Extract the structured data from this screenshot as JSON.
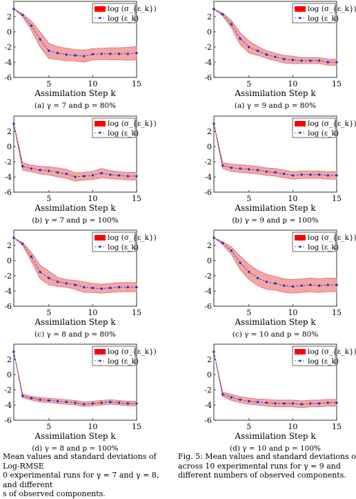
{
  "colors": {
    "band_fill": "#f4a6a6",
    "band_edge": "#e06060",
    "mean_line": "#1a33cc",
    "legend_red": "#ff0000"
  },
  "chart_data": [
    {
      "type": "area",
      "x": [
        1,
        2,
        3,
        4,
        5,
        6,
        7,
        8,
        9,
        10,
        11,
        12,
        13,
        14,
        15
      ],
      "mean": [
        3.0,
        2.2,
        0.8,
        -1.0,
        -2.5,
        -2.8,
        -3.0,
        -3.1,
        -3.2,
        -2.95,
        -2.9,
        -2.9,
        -2.9,
        -2.9,
        -2.8
      ],
      "std": [
        0.0,
        0.2,
        0.6,
        1.0,
        1.0,
        0.85,
        0.85,
        0.75,
        0.8,
        0.75,
        0.75,
        0.8,
        0.8,
        0.85,
        0.9
      ],
      "xlabel": "Assimilation Step k",
      "ylim": [
        -6,
        4
      ],
      "xlim": [
        1,
        15
      ],
      "xticks": [
        5,
        10,
        15
      ],
      "yticks": [
        -6,
        -4,
        -2,
        0,
        2
      ],
      "legend": [
        "log (σ_{ε_k})",
        "log (ε_k)"
      ],
      "caption": "(a) γ = 7 and p = 80%"
    },
    {
      "type": "area",
      "x": [
        1,
        2,
        3,
        4,
        5,
        6,
        7,
        8,
        9,
        10,
        11,
        12,
        13,
        14,
        15
      ],
      "mean": [
        3.0,
        -2.6,
        -2.9,
        -3.1,
        -3.2,
        -3.4,
        -3.6,
        -4.0,
        -3.9,
        -3.8,
        -3.5,
        -3.7,
        -3.8,
        -3.9,
        -3.9
      ],
      "std": [
        0.0,
        0.5,
        0.45,
        0.5,
        0.55,
        0.6,
        0.6,
        0.55,
        0.5,
        0.55,
        0.6,
        0.55,
        0.5,
        0.5,
        0.5
      ],
      "xlabel": "Assimilation Step k",
      "ylim": [
        -6,
        4
      ],
      "xlim": [
        1,
        15
      ],
      "xticks": [
        5,
        10,
        15
      ],
      "yticks": [
        -6,
        -4,
        -2,
        0,
        2
      ],
      "legend": [
        "log (σ_{ε_k})",
        "log (ε_k)"
      ],
      "caption": "(b) γ = 7 and p = 100%"
    },
    {
      "type": "area",
      "x": [
        1,
        2,
        3,
        4,
        5,
        6,
        7,
        8,
        9,
        10,
        11,
        12,
        13,
        14,
        15
      ],
      "mean": [
        3.0,
        2.2,
        0.5,
        -1.5,
        -2.3,
        -2.8,
        -3.0,
        -3.2,
        -3.5,
        -3.6,
        -3.7,
        -3.6,
        -3.5,
        -3.5,
        -3.5
      ],
      "std": [
        0.0,
        0.2,
        0.6,
        0.9,
        0.9,
        0.6,
        0.5,
        0.6,
        0.7,
        0.6,
        0.6,
        0.6,
        0.6,
        0.6,
        0.6
      ],
      "xlabel": "Assimilation Step k",
      "ylim": [
        -6,
        4
      ],
      "xlim": [
        1,
        15
      ],
      "xticks": [
        5,
        10,
        15
      ],
      "yticks": [
        -6,
        -4,
        -2,
        0,
        2
      ],
      "legend": [
        "log (σ_{ε_k})",
        "log (ε_k)"
      ],
      "caption": "(c) γ = 8 and p = 80%"
    },
    {
      "type": "area",
      "x": [
        1,
        2,
        3,
        4,
        5,
        6,
        7,
        8,
        9,
        10,
        11,
        12,
        13,
        14,
        15
      ],
      "mean": [
        3.0,
        -2.8,
        -3.1,
        -3.3,
        -3.4,
        -3.5,
        -3.6,
        -3.7,
        -3.9,
        -3.8,
        -3.7,
        -3.6,
        -3.7,
        -3.8,
        -3.8
      ],
      "std": [
        0.0,
        0.25,
        0.25,
        0.3,
        0.3,
        0.3,
        0.3,
        0.3,
        0.3,
        0.3,
        0.3,
        0.3,
        0.3,
        0.3,
        0.3
      ],
      "xlabel": "Assimilation Step k",
      "ylim": [
        -6,
        4
      ],
      "xlim": [
        1,
        15
      ],
      "xticks": [
        5,
        10,
        15
      ],
      "yticks": [
        -6,
        -4,
        -2,
        0,
        2
      ],
      "legend": [
        "log (σ_{ε_k})",
        "log (ε_k)"
      ],
      "caption": "(d) γ = 8 and p = 100%"
    },
    {
      "type": "area",
      "x": [
        1,
        2,
        3,
        4,
        5,
        6,
        7,
        8,
        9,
        10,
        11,
        12,
        13,
        14,
        15
      ],
      "mean": [
        3.0,
        2.3,
        1.0,
        -0.9,
        -2.0,
        -2.5,
        -3.0,
        -3.3,
        -3.6,
        -3.7,
        -3.8,
        -3.8,
        -3.8,
        -4.0,
        -4.0
      ],
      "std": [
        0.0,
        0.2,
        0.5,
        0.8,
        0.8,
        0.6,
        0.5,
        0.5,
        0.5,
        0.5,
        0.4,
        0.4,
        0.4,
        0.4,
        0.4
      ],
      "xlabel": "Assimilation Step k",
      "ylim": [
        -6,
        4
      ],
      "xlim": [
        1,
        15
      ],
      "xticks": [
        5,
        10,
        15
      ],
      "yticks": [
        -6,
        -4,
        -2,
        0,
        2
      ],
      "legend": [
        "log (σ_{ε_k})",
        "log (ε_k)"
      ],
      "caption": "(a) γ = 9 and p = 80%"
    },
    {
      "type": "area",
      "x": [
        1,
        2,
        3,
        4,
        5,
        6,
        7,
        8,
        9,
        10,
        11,
        12,
        13,
        14,
        15
      ],
      "mean": [
        3.0,
        -2.5,
        -2.8,
        -2.9,
        -3.0,
        -3.1,
        -3.3,
        -3.4,
        -3.6,
        -3.8,
        -3.7,
        -3.7,
        -3.7,
        -3.8,
        -3.8
      ],
      "std": [
        0.0,
        0.4,
        0.5,
        0.5,
        0.5,
        0.5,
        0.5,
        0.5,
        0.5,
        0.5,
        0.5,
        0.5,
        0.5,
        0.5,
        0.5
      ],
      "xlabel": "Assimilation Step k",
      "ylim": [
        -6,
        4
      ],
      "xlim": [
        1,
        15
      ],
      "xticks": [
        5,
        10,
        15
      ],
      "yticks": [
        -6,
        -4,
        -2,
        0,
        2
      ],
      "legend": [
        "log (σ_{ε_k})",
        "log (ε_k)"
      ],
      "caption": "(b) γ = 9 and p = 100%"
    },
    {
      "type": "area",
      "x": [
        1,
        2,
        3,
        4,
        5,
        6,
        7,
        8,
        9,
        10,
        11,
        12,
        13,
        14,
        15
      ],
      "mean": [
        3.0,
        2.3,
        1.3,
        -0.3,
        -1.5,
        -2.3,
        -2.8,
        -3.0,
        -3.3,
        -3.4,
        -3.3,
        -3.2,
        -3.3,
        -3.2,
        -3.2
      ],
      "std": [
        0.0,
        0.2,
        0.5,
        0.9,
        1.0,
        1.0,
        1.0,
        0.9,
        0.9,
        0.9,
        0.9,
        0.9,
        0.9,
        0.9,
        0.9
      ],
      "xlabel": "Assimilation Step k",
      "ylim": [
        -6,
        4
      ],
      "xlim": [
        1,
        15
      ],
      "xticks": [
        5,
        10,
        15
      ],
      "yticks": [
        -6,
        -4,
        -2,
        0,
        2
      ],
      "legend": [
        "log (σ_{ε_k})",
        "log (ε_k)"
      ],
      "caption": "(c) γ = 10 and p = 80%"
    },
    {
      "type": "area",
      "x": [
        1,
        2,
        3,
        4,
        5,
        6,
        7,
        8,
        9,
        10,
        11,
        12,
        13,
        14,
        15
      ],
      "mean": [
        3.0,
        -2.6,
        -3.0,
        -3.3,
        -3.5,
        -3.6,
        -3.7,
        -3.8,
        -3.8,
        -3.8,
        -3.9,
        -3.8,
        -3.8,
        -3.7,
        -3.7
      ],
      "std": [
        0.0,
        0.3,
        0.4,
        0.4,
        0.4,
        0.4,
        0.45,
        0.45,
        0.45,
        0.45,
        0.45,
        0.45,
        0.45,
        0.45,
        0.45
      ],
      "xlabel": "Assimilation Step k",
      "ylim": [
        -6,
        4
      ],
      "xlim": [
        1,
        15
      ],
      "xticks": [
        5,
        10,
        15
      ],
      "yticks": [
        -6,
        -4,
        -2,
        0,
        2
      ],
      "legend": [
        "log (σ_{ε_k})",
        "log (ε_k)"
      ],
      "caption": "(d) γ = 10 and p = 100%"
    }
  ],
  "captions": {
    "left": "Mean values and standard deviations of Log-RMSE",
    "left_2": "0 experimental runs for γ = 7 and γ = 8, and different",
    "left_3": "s of observed components.",
    "right": "Fig. 5: Mean values and standard deviations o",
    "right_2": "across 10 experimental runs for γ = 9 and",
    "right_3": "different numbers of observed components."
  }
}
